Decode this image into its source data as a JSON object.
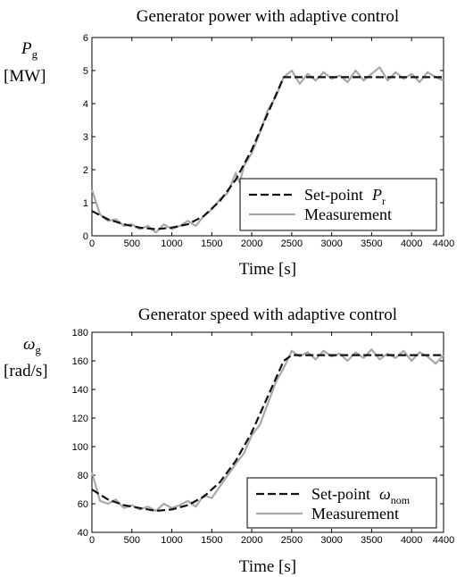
{
  "chart_data": [
    {
      "type": "line",
      "title": "Generator power with adaptive control",
      "ylabel_symbol": "P",
      "ylabel_sub": "g",
      "ylabel_unit": "[MW]",
      "xlabel": "Time [s]",
      "xlim": [
        0,
        4400
      ],
      "ylim": [
        0,
        6
      ],
      "xticks": [
        0,
        500,
        1000,
        1500,
        2000,
        2500,
        3000,
        3500,
        4000,
        4400
      ],
      "yticks": [
        0,
        1,
        2,
        3,
        4,
        5,
        6
      ],
      "legend_position": "bottom-right",
      "grid": false,
      "series": [
        {
          "name": "Set-point",
          "legend_symbol": "P",
          "legend_sub": "r",
          "style": "dashed",
          "color": "#111111",
          "x": [
            0,
            200,
            400,
            600,
            800,
            1000,
            1200,
            1400,
            1600,
            1800,
            2000,
            2200,
            2400,
            2600,
            3000,
            3500,
            4000,
            4400
          ],
          "y": [
            0.75,
            0.5,
            0.35,
            0.25,
            0.2,
            0.25,
            0.35,
            0.6,
            1.05,
            1.7,
            2.6,
            3.7,
            4.8,
            4.8,
            4.8,
            4.8,
            4.8,
            4.8
          ]
        },
        {
          "name": "Measurement",
          "style": "solid",
          "color": "#a8a8a8",
          "x": [
            0,
            100,
            200,
            300,
            400,
            500,
            600,
            700,
            800,
            900,
            1000,
            1100,
            1200,
            1300,
            1400,
            1500,
            1600,
            1700,
            1800,
            1850,
            1900,
            2000,
            2100,
            2200,
            2300,
            2400,
            2500,
            2600,
            2700,
            2800,
            2900,
            3000,
            3100,
            3200,
            3300,
            3400,
            3500,
            3600,
            3700,
            3800,
            3900,
            4000,
            4100,
            4200,
            4300,
            4400
          ],
          "y": [
            1.4,
            0.65,
            0.45,
            0.5,
            0.3,
            0.35,
            0.2,
            0.3,
            0.1,
            0.35,
            0.2,
            0.3,
            0.45,
            0.3,
            0.6,
            0.8,
            1.1,
            1.3,
            1.9,
            1.6,
            2.1,
            2.5,
            3.1,
            3.8,
            4.2,
            4.8,
            5.0,
            4.6,
            4.9,
            4.7,
            4.95,
            4.75,
            4.85,
            4.65,
            5.0,
            4.7,
            4.9,
            5.1,
            4.7,
            4.95,
            4.75,
            4.9,
            4.65,
            4.95,
            4.8,
            4.7
          ]
        }
      ]
    },
    {
      "type": "line",
      "title": "Generator speed with adaptive control",
      "ylabel_symbol": "ω",
      "ylabel_sub": "g",
      "ylabel_unit": "[rad/s]",
      "xlabel": "Time [s]",
      "xlim": [
        0,
        4400
      ],
      "ylim": [
        40,
        180
      ],
      "xticks": [
        0,
        500,
        1000,
        1500,
        2000,
        2500,
        3000,
        3500,
        4000,
        4400
      ],
      "yticks": [
        40,
        60,
        80,
        100,
        120,
        140,
        160,
        180
      ],
      "legend_position": "bottom-right",
      "grid": false,
      "series": [
        {
          "name": "Set-point",
          "legend_symbol": "ω",
          "legend_sub": "nom",
          "style": "dashed",
          "color": "#111111",
          "x": [
            0,
            200,
            400,
            600,
            800,
            1000,
            1200,
            1400,
            1600,
            1800,
            2000,
            2200,
            2400,
            2500,
            3000,
            3500,
            4000,
            4400
          ],
          "y": [
            70,
            63,
            59,
            57,
            55,
            56,
            59,
            65,
            75,
            90,
            110,
            135,
            160,
            164,
            164,
            164,
            164,
            164
          ]
        },
        {
          "name": "Measurement",
          "style": "solid",
          "color": "#a8a8a8",
          "x": [
            0,
            100,
            200,
            300,
            400,
            500,
            600,
            700,
            800,
            900,
            1000,
            1100,
            1200,
            1300,
            1400,
            1500,
            1600,
            1700,
            1800,
            1900,
            2000,
            2100,
            2200,
            2300,
            2400,
            2500,
            2600,
            2700,
            2800,
            2900,
            3000,
            3100,
            3200,
            3300,
            3400,
            3500,
            3600,
            3700,
            3800,
            3900,
            4000,
            4100,
            4200,
            4300,
            4400
          ],
          "y": [
            82,
            62,
            60,
            63,
            57,
            59,
            56,
            58,
            55,
            60,
            57,
            59,
            62,
            58,
            66,
            64,
            72,
            80,
            88,
            95,
            108,
            115,
            130,
            145,
            155,
            167,
            163,
            166,
            161,
            167,
            163,
            165,
            160,
            166,
            162,
            168,
            161,
            165,
            162,
            167,
            160,
            166,
            163,
            158,
            164
          ]
        }
      ]
    }
  ]
}
